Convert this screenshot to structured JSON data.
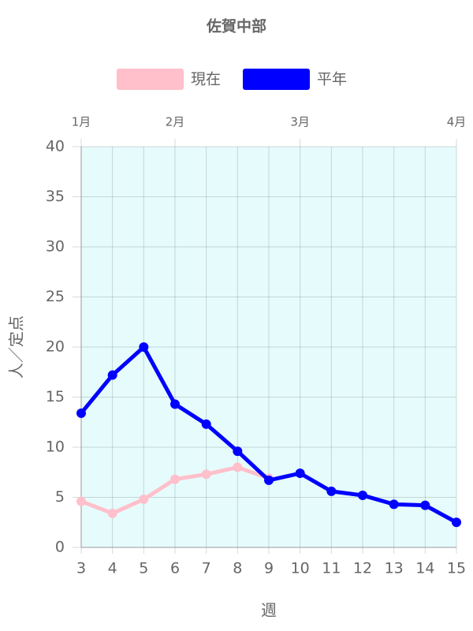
{
  "chart_data": {
    "type": "line",
    "title": "佐賀中部",
    "x": [
      3,
      4,
      5,
      6,
      7,
      8,
      9,
      10,
      11,
      12,
      13,
      14,
      15
    ],
    "series": [
      {
        "name": "現在",
        "color": "#ffc0cb",
        "values": [
          4.6,
          3.4,
          4.8,
          6.8,
          7.3,
          8.0,
          6.9,
          null,
          null,
          null,
          null,
          null,
          null
        ]
      },
      {
        "name": "平年",
        "color": "#0000ff",
        "values": [
          13.4,
          17.2,
          20.0,
          14.3,
          12.3,
          9.6,
          6.7,
          7.4,
          5.6,
          5.2,
          4.3,
          4.2,
          2.5
        ]
      }
    ],
    "xlim": [
      3,
      15
    ],
    "xticks": [
      3,
      4,
      5,
      6,
      7,
      8,
      9,
      10,
      11,
      12,
      13,
      14,
      15
    ],
    "x2ticks": [
      {
        "value": 3,
        "label": "1月"
      },
      {
        "value": 6,
        "label": "2月"
      },
      {
        "value": 10,
        "label": "3月"
      },
      {
        "value": 15,
        "label": "4月"
      }
    ],
    "ylim": [
      0,
      40
    ],
    "yticks": [
      0,
      5,
      10,
      15,
      20,
      25,
      30,
      35,
      40
    ],
    "xlabel": "週",
    "ylabel": "人／定点",
    "grid": true,
    "plot_background": "#e6fcfc"
  }
}
